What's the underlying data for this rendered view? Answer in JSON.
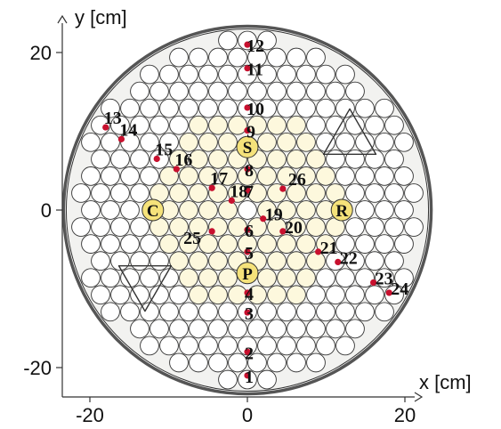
{
  "chart_data": {
    "type": "scatter",
    "xlabel": "x [cm]",
    "ylabel": "y [cm]",
    "xlim": [
      -23,
      23
    ],
    "ylim": [
      -23,
      23
    ],
    "x_ticks": [
      {
        "value": -20,
        "label": "-20"
      },
      {
        "value": 0,
        "label": "0"
      },
      {
        "value": 20,
        "label": "20"
      }
    ],
    "y_ticks": [
      {
        "value": -20,
        "label": "-20"
      },
      {
        "value": 0,
        "label": "0"
      },
      {
        "value": 20,
        "label": "20"
      }
    ],
    "core_radius": 23,
    "colors": {
      "marker": "#c8102e",
      "special_fill": "#f5e27a",
      "fuel_fill": "#fdf8dd",
      "outline": "#333333",
      "vessel": "#555555",
      "core_fill": "#f2f2f0"
    },
    "special_elements": [
      {
        "label": "S",
        "x": 0,
        "y": 8
      },
      {
        "label": "C",
        "x": -12,
        "y": 0
      },
      {
        "label": "R",
        "x": 12,
        "y": 0
      },
      {
        "label": "P",
        "x": 0,
        "y": -8
      }
    ],
    "measurement_positions": [
      {
        "label": "1",
        "x": 0,
        "y": -21
      },
      {
        "label": "2",
        "x": 0,
        "y": -18
      },
      {
        "label": "3",
        "x": 0,
        "y": -13
      },
      {
        "label": "4",
        "x": 0,
        "y": -10.5
      },
      {
        "label": "5",
        "x": 0,
        "y": -5.3
      },
      {
        "label": "6",
        "x": 0,
        "y": -2.5
      },
      {
        "label": "7",
        "x": 0,
        "y": 2.5
      },
      {
        "label": "8",
        "x": 0,
        "y": 5.2
      },
      {
        "label": "9",
        "x": 0,
        "y": 10.1
      },
      {
        "label": "10",
        "x": 0,
        "y": 13
      },
      {
        "label": "11",
        "x": 0,
        "y": 18
      },
      {
        "label": "12",
        "x": 0,
        "y": 21
      },
      {
        "label": "13",
        "x": -18,
        "y": 10.5
      },
      {
        "label": "14",
        "x": -16,
        "y": 9
      },
      {
        "label": "15",
        "x": -11.5,
        "y": 6.5
      },
      {
        "label": "16",
        "x": -9,
        "y": 5.2
      },
      {
        "label": "17",
        "x": -4.5,
        "y": 2.8
      },
      {
        "label": "18",
        "x": -2,
        "y": 1.2
      },
      {
        "label": "19",
        "x": 2,
        "y": -1.1
      },
      {
        "label": "20",
        "x": 4.5,
        "y": -2.7
      },
      {
        "label": "21",
        "x": 9,
        "y": -5.3
      },
      {
        "label": "22",
        "x": 11.5,
        "y": -6.6
      },
      {
        "label": "23",
        "x": 16,
        "y": -9.2
      },
      {
        "label": "24",
        "x": 18,
        "y": -10.5
      },
      {
        "label": "25",
        "x": -4.5,
        "y": -2.7
      },
      {
        "label": "26",
        "x": 4.5,
        "y": 2.7
      }
    ]
  }
}
